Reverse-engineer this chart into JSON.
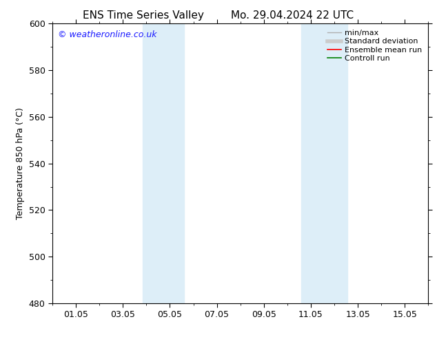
{
  "title_left": "ENS Time Series Valley",
  "title_right": "Mo. 29.04.2024 22 UTC",
  "ylabel": "Temperature 850 hPa (°C)",
  "ylim": [
    480,
    600
  ],
  "yticks": [
    480,
    500,
    520,
    540,
    560,
    580,
    600
  ],
  "xlim": [
    0,
    16
  ],
  "xtick_positions": [
    1,
    3,
    5,
    7,
    9,
    11,
    13,
    15
  ],
  "xtick_labels": [
    "01.05",
    "03.05",
    "05.05",
    "07.05",
    "09.05",
    "11.05",
    "13.05",
    "15.05"
  ],
  "shaded_bands": [
    {
      "x_start": 3.85,
      "x_end": 5.6,
      "color": "#ddeef8"
    },
    {
      "x_start": 10.6,
      "x_end": 12.55,
      "color": "#ddeef8"
    }
  ],
  "watermark_text": "© weatheronline.co.uk",
  "watermark_color": "#1a1aff",
  "legend_entries": [
    {
      "label": "min/max",
      "color": "#b0b0b0",
      "lw": 1.0,
      "style": "solid"
    },
    {
      "label": "Standard deviation",
      "color": "#cccccc",
      "lw": 4.0,
      "style": "solid"
    },
    {
      "label": "Ensemble mean run",
      "color": "#ff0000",
      "lw": 1.2,
      "style": "solid"
    },
    {
      "label": "Controll run",
      "color": "#008000",
      "lw": 1.2,
      "style": "solid"
    }
  ],
  "bg_color": "#ffffff",
  "plot_bg_color": "#ffffff",
  "title_fontsize": 11,
  "ylabel_fontsize": 9,
  "tick_fontsize": 9,
  "watermark_fontsize": 9,
  "legend_fontsize": 8
}
